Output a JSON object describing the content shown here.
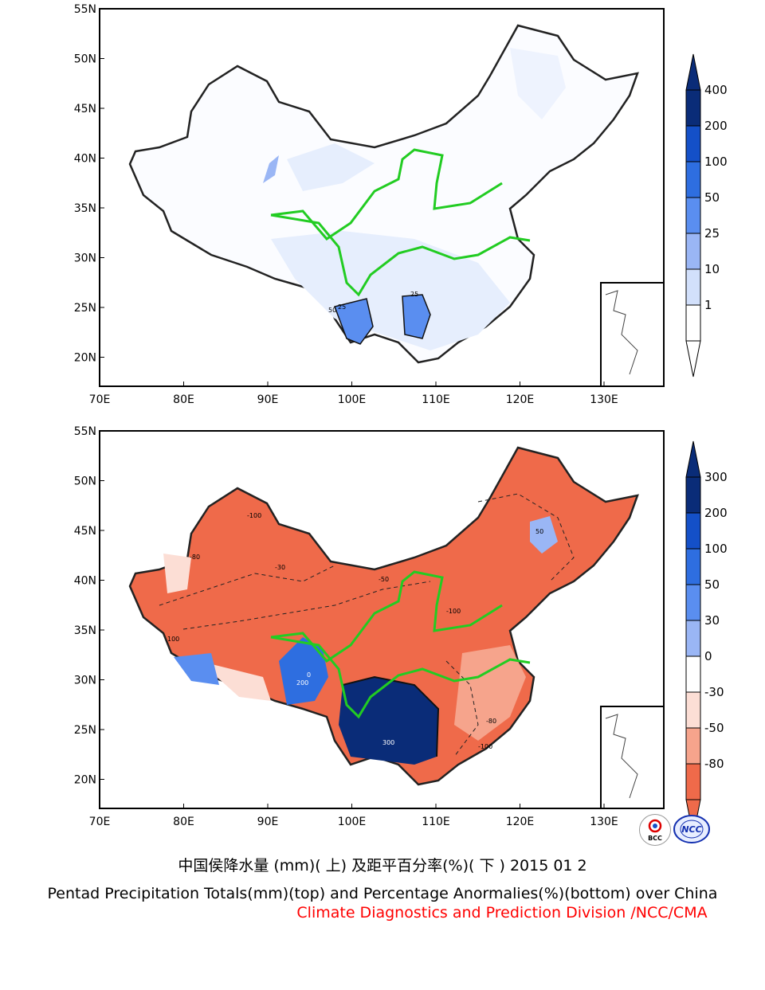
{
  "top_map": {
    "lat_labels": [
      "55N",
      "50N",
      "45N",
      "40N",
      "35N",
      "30N",
      "25N",
      "20N"
    ],
    "lon_labels": [
      "70E",
      "80E",
      "90E",
      "100E",
      "110E",
      "120E",
      "130E"
    ],
    "colorbar_labels": [
      "400",
      "200",
      "100",
      "50",
      "25",
      "10",
      "1"
    ],
    "colorbar_colors": [
      "#0a2c78",
      "#1450c8",
      "#2e6ee0",
      "#5a8ef0",
      "#9ab6f5",
      "#d2e0fb",
      "#ffffff"
    ],
    "contour_labels": [
      "25",
      "25",
      "50"
    ]
  },
  "bottom_map": {
    "lat_labels": [
      "55N",
      "50N",
      "45N",
      "40N",
      "35N",
      "30N",
      "25N",
      "20N"
    ],
    "lon_labels": [
      "70E",
      "80E",
      "90E",
      "100E",
      "110E",
      "120E",
      "130E"
    ],
    "colorbar_labels": [
      "300",
      "200",
      "100",
      "50",
      "30",
      "0",
      "-30",
      "-50",
      "-80"
    ],
    "colorbar_colors": [
      "#0a2c78",
      "#1450c8",
      "#2e6ee0",
      "#5a8ef0",
      "#9ab6f5",
      "#ffffff",
      "#fcded5",
      "#f6a48c",
      "#ef6a4a"
    ],
    "contour_labels": [
      "-100",
      "-80",
      "-50",
      "-30",
      "0",
      "100",
      "200",
      "300",
      "50"
    ]
  },
  "captions": {
    "chinese": "中国侯降水量 (mm)( 上) 及距平百分率(%)( 下 ) 2015 01 2",
    "english": "Pentad Precipitation Totals(mm)(top) and Percentage Anormalies(%)(bottom) over China",
    "division": "Climate Diagnostics and Prediction Division /NCC/CMA"
  },
  "logos": {
    "bcc": "BCC",
    "ncc": "NCC"
  }
}
